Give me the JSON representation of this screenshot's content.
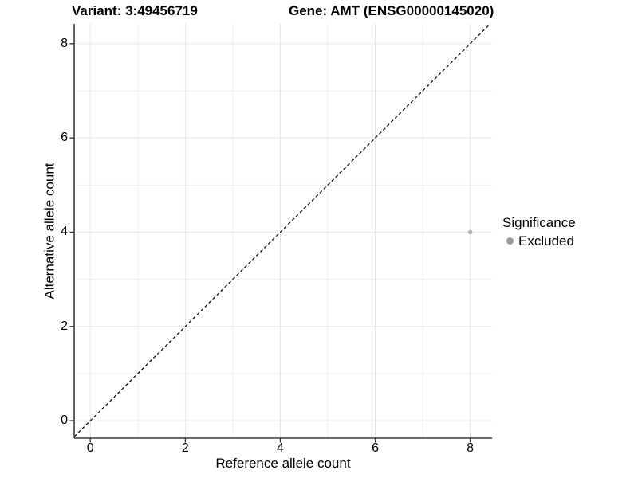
{
  "chart_data": {
    "type": "scatter",
    "title_left": "Variant: 3:49456719",
    "title_right": "Gene: AMT (ENSG00000145020)",
    "xlabel": "Reference allele count",
    "ylabel": "Alternative allele count",
    "xlim": [
      -0.34,
      8.46
    ],
    "ylim": [
      -0.37,
      8.42
    ],
    "x_ticks": [
      0,
      2,
      4,
      6,
      8
    ],
    "y_ticks": [
      0,
      2,
      4,
      6,
      8
    ],
    "x_minor_gridlines": [
      1,
      3,
      5,
      7
    ],
    "y_minor_gridlines": [
      1,
      3,
      5,
      7
    ],
    "grid": "major+minor",
    "legend_position": "right",
    "reference_line": {
      "equation": "y = x",
      "style": "dashed",
      "color": "#000000"
    },
    "series": [
      {
        "name": "Excluded",
        "color": "#b2b2b2",
        "points": [
          {
            "x": 8,
            "y": 4
          }
        ]
      }
    ],
    "legend": {
      "title": "Significance",
      "items": [
        {
          "label": "Excluded",
          "color": "#9c9c9c"
        }
      ]
    },
    "colors": {
      "background": "#ffffff",
      "grid_major": "#e5e5e5",
      "grid_minor": "#efefef",
      "axis_line": "#3b3b3b",
      "tick_mark": "#333333",
      "text": "#000000"
    }
  }
}
